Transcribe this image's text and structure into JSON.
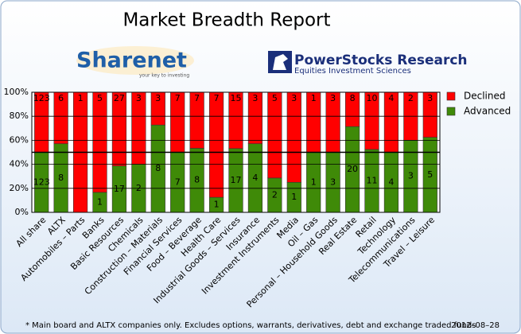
{
  "chart_data": {
    "type": "bar",
    "stacking": "percent",
    "title": "Market Breadth Report",
    "logos": {
      "sharenet": "Sharenet",
      "sharenet_tagline": "your key to investing",
      "powerstocks": "PowerStocks  Research",
      "powerstocks_tagline": "Equities Investment Sciences"
    },
    "categories": [
      "All share",
      "ALTX",
      "Automobiles – Parts",
      "Banks",
      "Basic Resources",
      "Chemicals",
      "Construction – Materials",
      "Financial Services",
      "Food – Beverage",
      "Health Care",
      "Industrial Goods – Services",
      "Insurance",
      "Investment Instruments",
      "Media",
      "Oil – Gas",
      "Personal – Household Goods",
      "Real Estate",
      "Retail",
      "Technology",
      "Telecommunications",
      "Travel – Leisure"
    ],
    "series": [
      {
        "name": "Advanced",
        "color": "#3f8a08",
        "values": [
          123,
          8,
          0,
          1,
          17,
          2,
          8,
          7,
          8,
          1,
          17,
          4,
          2,
          1,
          1,
          3,
          20,
          11,
          4,
          3,
          5
        ]
      },
      {
        "name": "Declined",
        "color": "#ff0000",
        "values": [
          123,
          6,
          1,
          5,
          27,
          3,
          3,
          7,
          7,
          7,
          15,
          3,
          5,
          3,
          1,
          3,
          8,
          10,
          4,
          2,
          3
        ]
      }
    ],
    "ylim": [
      0,
      100
    ],
    "yticks": [
      {
        "value": 0,
        "label": "0%"
      },
      {
        "value": 20,
        "label": "20%"
      },
      {
        "value": 40,
        "label": "40%"
      },
      {
        "value": 60,
        "label": "60%"
      },
      {
        "value": 80,
        "label": "80%"
      },
      {
        "value": 100,
        "label": "100%"
      }
    ],
    "grid": true,
    "reference_line": 50,
    "legend": "right",
    "footnote": "* Main board and ALTX companies only. Excludes options, warrants, derivatives, debt and exchange traded funds",
    "date": "2012–08–28"
  }
}
